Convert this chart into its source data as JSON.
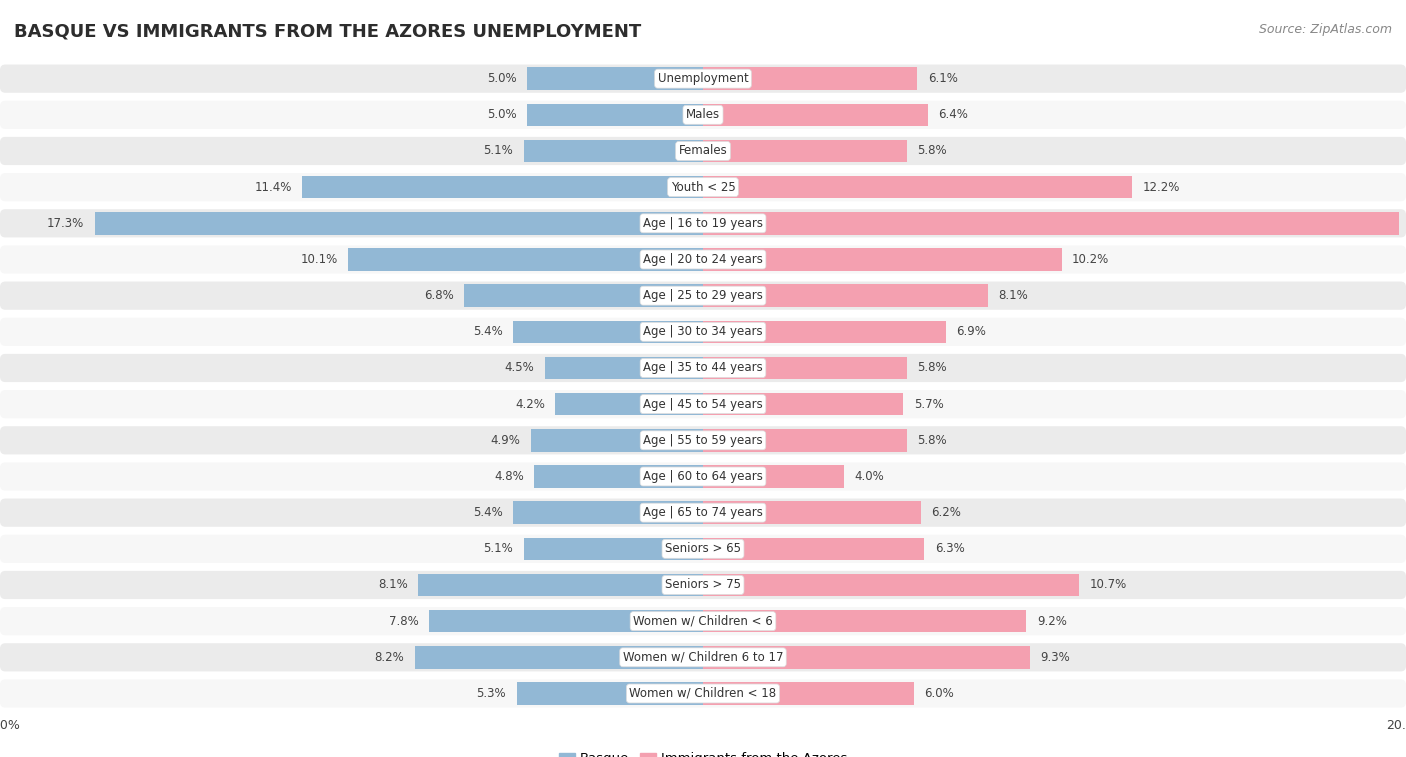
{
  "title": "BASQUE VS IMMIGRANTS FROM THE AZORES UNEMPLOYMENT",
  "source": "Source: ZipAtlas.com",
  "categories": [
    "Unemployment",
    "Males",
    "Females",
    "Youth < 25",
    "Age | 16 to 19 years",
    "Age | 20 to 24 years",
    "Age | 25 to 29 years",
    "Age | 30 to 34 years",
    "Age | 35 to 44 years",
    "Age | 45 to 54 years",
    "Age | 55 to 59 years",
    "Age | 60 to 64 years",
    "Age | 65 to 74 years",
    "Seniors > 65",
    "Seniors > 75",
    "Women w/ Children < 6",
    "Women w/ Children 6 to 17",
    "Women w/ Children < 18"
  ],
  "basque": [
    5.0,
    5.0,
    5.1,
    11.4,
    17.3,
    10.1,
    6.8,
    5.4,
    4.5,
    4.2,
    4.9,
    4.8,
    5.4,
    5.1,
    8.1,
    7.8,
    8.2,
    5.3
  ],
  "azores": [
    6.1,
    6.4,
    5.8,
    12.2,
    19.8,
    10.2,
    8.1,
    6.9,
    5.8,
    5.7,
    5.8,
    4.0,
    6.2,
    6.3,
    10.7,
    9.2,
    9.3,
    6.0
  ],
  "basque_color": "#92b8d5",
  "azores_color": "#f4a0b0",
  "background_color": "#ffffff",
  "row_color_even": "#ebebeb",
  "row_color_odd": "#f7f7f7",
  "axis_limit": 20.0,
  "legend_basque": "Basque",
  "legend_azores": "Immigrants from the Azores",
  "title_fontsize": 13,
  "source_fontsize": 9,
  "label_fontsize": 8.5,
  "value_fontsize": 8.5
}
